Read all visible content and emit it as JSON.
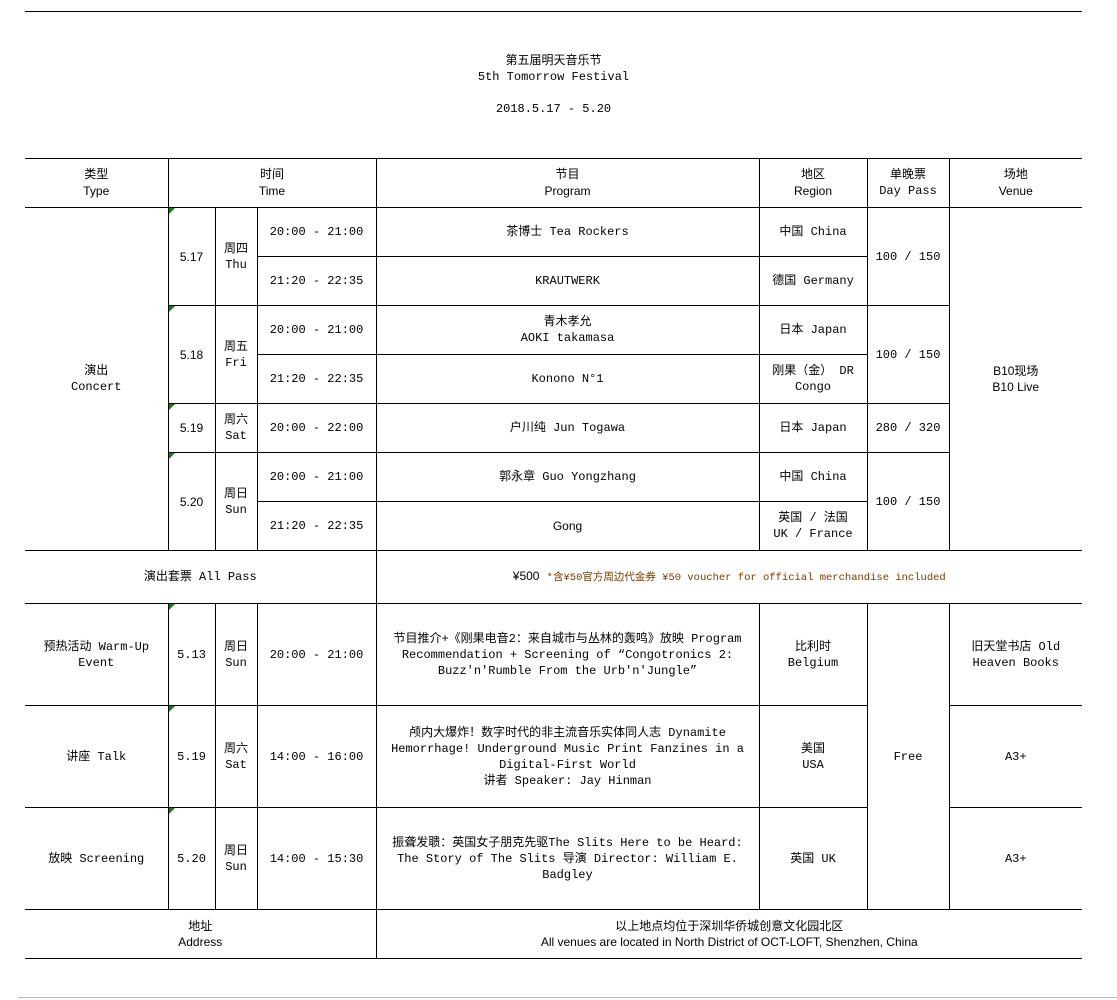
{
  "title": {
    "cn": "第五届明天音乐节",
    "en": "5th Tomorrow Festival",
    "dates": "2018.5.17 - 5.20"
  },
  "headers": {
    "type": {
      "cn": "类型",
      "en": "Type"
    },
    "time": {
      "cn": "时间",
      "en": "Time"
    },
    "program": {
      "cn": "节目",
      "en": "Program"
    },
    "region": {
      "cn": "地区",
      "en": "Region"
    },
    "daypass": {
      "cn": "单晚票",
      "en": "Day Pass"
    },
    "venue": {
      "cn": "场地",
      "en": "Venue"
    }
  },
  "concert": {
    "type": {
      "cn": "演出",
      "en": "Concert"
    },
    "venue": {
      "cn": "B10现场",
      "en": "B10 Live"
    },
    "days": [
      {
        "date": "5.17",
        "day_cn": "周四",
        "day_en": "Thu",
        "pass": "100 / 150",
        "slots": [
          {
            "time": "20:00 - 21:00",
            "program": "茶博士 Tea Rockers",
            "region": "中国 China"
          },
          {
            "time": "21:20 - 22:35",
            "program": "KRAUTWERK",
            "region": "德国 Germany"
          }
        ]
      },
      {
        "date": "5.18",
        "day_cn": "周五",
        "day_en": "Fri",
        "pass": "100 / 150",
        "slots": [
          {
            "time": "20:00 - 21:00",
            "program": "青木孝允",
            "program2": "AOKI takamasa",
            "region": "日本 Japan"
          },
          {
            "time": "21:20 - 22:35",
            "program": "Konono N°1",
            "region": "刚果（金） DR",
            "region2": "Congo"
          }
        ]
      },
      {
        "date": "5.19",
        "day_cn": "周六",
        "day_en": "Sat",
        "pass": "280 / 320",
        "slots": [
          {
            "time": "20:00 - 22:00",
            "program": "户川纯 Jun Togawa",
            "region": "日本 Japan"
          }
        ]
      },
      {
        "date": "5.20",
        "day_cn": "周日",
        "day_en": "Sun",
        "pass": "100 / 150",
        "slots": [
          {
            "time": "20:00 - 21:00",
            "program": "郭永章 Guo Yongzhang",
            "region": "中国 China"
          },
          {
            "time": "21:20 - 22:35",
            "program": "Gong",
            "region": "英国 / 法国",
            "region2": "UK / France"
          }
        ]
      }
    ]
  },
  "allpass": {
    "label": "演出套票 All Pass",
    "price": "¥500",
    "note": "*含¥50官方周边代金券 ¥50 voucher for official merchandise included"
  },
  "events": [
    {
      "type": "预热活动 Warm-Up Event",
      "date": "5.13",
      "day_cn": "周日",
      "day_en": "Sun",
      "time": "20:00 - 21:00",
      "program": "节目推介+《刚果电音2：来自城市与丛林的轰鸣》放映 Program Recommendation + Screening of “Congotronics 2: Buzz'n'Rumble From the Urb'n'Jungle”",
      "region": "比利时",
      "region2": "Belgium",
      "venue": "旧天堂书店 Old Heaven Books"
    },
    {
      "type": "讲座 Talk",
      "date": "5.19",
      "day_cn": "周六",
      "day_en": "Sat",
      "time": "14:00 - 16:00",
      "program": "颅内大爆炸！数字时代的非主流音乐实体同人志 Dynamite Hemorrhage! Underground Music Print Fanzines in a Digital-First World",
      "program2": "讲者 Speaker: Jay Hinman",
      "region": "美国",
      "region2": "USA",
      "venue": "A3+"
    },
    {
      "type": "放映 Screening",
      "date": "5.20",
      "day_cn": "周日",
      "day_en": "Sun",
      "time": "14:00 - 15:30",
      "program": "振聋发聩：英国女子朋克先驱The Slits Here to be Heard: The Story of The Slits 导演 Director:  William E. Badgley",
      "region": "英国 UK",
      "venue": "A3+"
    }
  ],
  "events_price": "Free",
  "address": {
    "label_cn": "地址",
    "label_en": "Address",
    "cn": "以上地点均位于深圳华侨城创意文化园北区",
    "en": "All venues are located in North District of OCT-LOFT, Shenzhen, China"
  }
}
